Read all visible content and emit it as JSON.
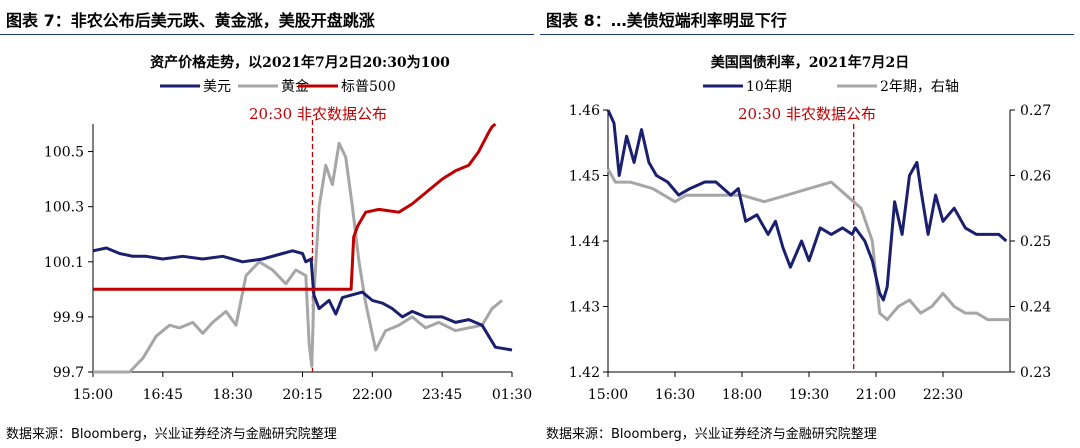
{
  "left": {
    "figure_title": "图表 7：非农公布后美元跌、黄金涨，美股开盘跳涨",
    "source": "数据来源：Bloomberg，兴业证券经济与金融研究院整理",
    "colors": {
      "usd": "#1a1f6e",
      "gold": "#a6a6a6",
      "spx": "#c00000",
      "event": "#c00000"
    },
    "chart_data": {
      "type": "line",
      "title": "资产价格走势，以2021年7月2日20:30为100",
      "xlabel": "",
      "ylabel": "",
      "x_ticks": [
        "15:00",
        "16:45",
        "18:30",
        "20:15",
        "22:00",
        "23:45",
        "01:30"
      ],
      "xlim": [
        "15:00",
        "01:30"
      ],
      "ylim": [
        99.7,
        100.6
      ],
      "y_ticks": [
        "99.7",
        "99.9",
        "100.1",
        "100.3",
        "100.5"
      ],
      "annotation": {
        "x": "20:30",
        "label": "20:30 非农数据公布"
      },
      "series": [
        {
          "name": "美元",
          "key": "usd",
          "points": [
            [
              "15:00",
              100.14
            ],
            [
              "15:20",
              100.15
            ],
            [
              "15:40",
              100.13
            ],
            [
              "16:00",
              100.12
            ],
            [
              "16:20",
              100.12
            ],
            [
              "16:45",
              100.11
            ],
            [
              "17:15",
              100.12
            ],
            [
              "17:45",
              100.11
            ],
            [
              "18:15",
              100.12
            ],
            [
              "18:45",
              100.1
            ],
            [
              "19:15",
              100.11
            ],
            [
              "19:45",
              100.13
            ],
            [
              "20:00",
              100.14
            ],
            [
              "20:15",
              100.13
            ],
            [
              "20:20",
              100.1
            ],
            [
              "20:28",
              100.11
            ],
            [
              "20:32",
              99.98
            ],
            [
              "20:40",
              99.93
            ],
            [
              "20:55",
              99.96
            ],
            [
              "21:05",
              99.91
            ],
            [
              "21:15",
              99.97
            ],
            [
              "21:30",
              99.98
            ],
            [
              "21:45",
              99.99
            ],
            [
              "22:00",
              99.96
            ],
            [
              "22:15",
              99.95
            ],
            [
              "22:30",
              99.93
            ],
            [
              "22:45",
              99.9
            ],
            [
              "23:00",
              99.92
            ],
            [
              "23:20",
              99.9
            ],
            [
              "23:45",
              99.9
            ],
            [
              "24:05",
              99.88
            ],
            [
              "24:25",
              99.89
            ],
            [
              "24:45",
              99.87
            ],
            [
              "25:05",
              99.79
            ],
            [
              "25:30",
              99.78
            ]
          ]
        },
        {
          "name": "黄金",
          "key": "gold",
          "points": [
            [
              "15:00",
              99.7
            ],
            [
              "15:30",
              99.7
            ],
            [
              "15:55",
              99.7
            ],
            [
              "16:15",
              99.75
            ],
            [
              "16:35",
              99.83
            ],
            [
              "16:55",
              99.87
            ],
            [
              "17:10",
              99.86
            ],
            [
              "17:30",
              99.88
            ],
            [
              "17:45",
              99.84
            ],
            [
              "18:00",
              99.88
            ],
            [
              "18:20",
              99.92
            ],
            [
              "18:35",
              99.87
            ],
            [
              "18:50",
              100.05
            ],
            [
              "19:10",
              100.1
            ],
            [
              "19:30",
              100.07
            ],
            [
              "19:50",
              100.02
            ],
            [
              "20:05",
              100.07
            ],
            [
              "20:20",
              100.05
            ],
            [
              "20:25",
              99.8
            ],
            [
              "20:29",
              99.72
            ],
            [
              "20:32",
              99.97
            ],
            [
              "20:40",
              100.3
            ],
            [
              "20:50",
              100.45
            ],
            [
              "21:00",
              100.38
            ],
            [
              "21:10",
              100.53
            ],
            [
              "21:20",
              100.48
            ],
            [
              "21:30",
              100.3
            ],
            [
              "21:40",
              100.1
            ],
            [
              "21:50",
              99.95
            ],
            [
              "22:05",
              99.78
            ],
            [
              "22:20",
              99.85
            ],
            [
              "22:40",
              99.87
            ],
            [
              "23:00",
              99.9
            ],
            [
              "23:20",
              99.86
            ],
            [
              "23:40",
              99.88
            ],
            [
              "24:05",
              99.85
            ],
            [
              "24:25",
              99.86
            ],
            [
              "24:45",
              99.87
            ],
            [
              "25:00",
              99.93
            ],
            [
              "25:15",
              99.96
            ]
          ]
        },
        {
          "name": "标普500",
          "key": "spx",
          "points": [
            [
              "15:00",
              100.0
            ],
            [
              "21:28",
              100.0
            ],
            [
              "21:32",
              100.19
            ],
            [
              "21:38",
              100.23
            ],
            [
              "21:50",
              100.28
            ],
            [
              "22:10",
              100.29
            ],
            [
              "22:40",
              100.28
            ],
            [
              "23:00",
              100.31
            ],
            [
              "23:20",
              100.35
            ],
            [
              "23:45",
              100.4
            ],
            [
              "24:05",
              100.43
            ],
            [
              "24:25",
              100.45
            ],
            [
              "24:40",
              100.5
            ],
            [
              "24:55",
              100.57
            ],
            [
              "25:00",
              100.59
            ],
            [
              "25:05",
              100.6
            ]
          ]
        }
      ]
    }
  },
  "right": {
    "figure_title": "图表 8：…美债短端利率明显下行",
    "source": "数据来源：Bloomberg，兴业证券经济与金融研究院整理",
    "colors": {
      "y10": "#1a1f6e",
      "y2": "#a6a6a6",
      "event": "#c00000"
    },
    "chart_data": {
      "type": "line",
      "title": "美国国债利率，2021年7月2日",
      "xlabel": "",
      "ylabel": "",
      "x_ticks": [
        "15:00",
        "16:30",
        "18:00",
        "19:30",
        "21:00",
        "22:30"
      ],
      "xlim": [
        "15:00",
        "24:00"
      ],
      "ylim_left": [
        1.42,
        1.46
      ],
      "y_ticks_left": [
        "1.42",
        "1.43",
        "1.44",
        "1.45",
        "1.46"
      ],
      "ylim_right": [
        0.23,
        0.27
      ],
      "y_ticks_right": [
        "0.23",
        "0.24",
        "0.25",
        "0.26",
        "0.27"
      ],
      "annotation": {
        "x": "20:30",
        "label": "20:30 非农数据公布"
      },
      "series": [
        {
          "name": "10年期",
          "key": "y10",
          "axis": "left",
          "points": [
            [
              "15:00",
              1.46
            ],
            [
              "15:08",
              1.458
            ],
            [
              "15:15",
              1.45
            ],
            [
              "15:25",
              1.456
            ],
            [
              "15:35",
              1.452
            ],
            [
              "15:45",
              1.457
            ],
            [
              "15:55",
              1.452
            ],
            [
              "16:05",
              1.45
            ],
            [
              "16:20",
              1.449
            ],
            [
              "16:35",
              1.447
            ],
            [
              "16:50",
              1.448
            ],
            [
              "17:10",
              1.449
            ],
            [
              "17:25",
              1.449
            ],
            [
              "17:45",
              1.447
            ],
            [
              "17:55",
              1.448
            ],
            [
              "18:05",
              1.443
            ],
            [
              "18:20",
              1.444
            ],
            [
              "18:35",
              1.441
            ],
            [
              "18:45",
              1.443
            ],
            [
              "18:55",
              1.439
            ],
            [
              "19:05",
              1.436
            ],
            [
              "19:20",
              1.44
            ],
            [
              "19:30",
              1.437
            ],
            [
              "19:45",
              1.442
            ],
            [
              "20:00",
              1.441
            ],
            [
              "20:15",
              1.442
            ],
            [
              "20:28",
              1.441
            ],
            [
              "20:32",
              1.442
            ],
            [
              "20:45",
              1.44
            ],
            [
              "20:55",
              1.437
            ],
            [
              "21:05",
              1.432
            ],
            [
              "21:10",
              1.431
            ],
            [
              "21:15",
              1.433
            ],
            [
              "21:25",
              1.446
            ],
            [
              "21:35",
              1.441
            ],
            [
              "21:45",
              1.45
            ],
            [
              "21:55",
              1.452
            ],
            [
              "22:00",
              1.448
            ],
            [
              "22:10",
              1.441
            ],
            [
              "22:20",
              1.447
            ],
            [
              "22:30",
              1.443
            ],
            [
              "22:45",
              1.445
            ],
            [
              "23:00",
              1.442
            ],
            [
              "23:15",
              1.441
            ],
            [
              "23:30",
              1.441
            ],
            [
              "23:45",
              1.441
            ],
            [
              "23:55",
              1.44
            ]
          ]
        },
        {
          "name": "2年期，右轴",
          "key": "y2",
          "axis": "right",
          "points": [
            [
              "15:00",
              0.261
            ],
            [
              "15:10",
              0.259
            ],
            [
              "15:30",
              0.259
            ],
            [
              "16:00",
              0.258
            ],
            [
              "16:30",
              0.256
            ],
            [
              "16:45",
              0.257
            ],
            [
              "17:30",
              0.257
            ],
            [
              "18:00",
              0.257
            ],
            [
              "18:30",
              0.256
            ],
            [
              "19:00",
              0.257
            ],
            [
              "19:30",
              0.258
            ],
            [
              "20:00",
              0.259
            ],
            [
              "20:20",
              0.257
            ],
            [
              "20:40",
              0.255
            ],
            [
              "20:55",
              0.25
            ],
            [
              "21:05",
              0.239
            ],
            [
              "21:15",
              0.238
            ],
            [
              "21:30",
              0.24
            ],
            [
              "21:45",
              0.241
            ],
            [
              "22:00",
              0.239
            ],
            [
              "22:15",
              0.24
            ],
            [
              "22:30",
              0.242
            ],
            [
              "22:45",
              0.24
            ],
            [
              "23:00",
              0.239
            ],
            [
              "23:15",
              0.239
            ],
            [
              "23:30",
              0.238
            ],
            [
              "23:45",
              0.238
            ],
            [
              "24:00",
              0.238
            ]
          ]
        }
      ]
    }
  }
}
